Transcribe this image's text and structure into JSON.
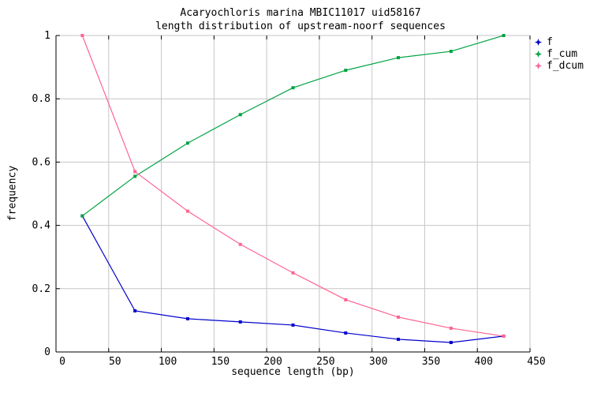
{
  "chart_data": {
    "type": "line",
    "title": "Acaryochloris marina MBIC11017 uid58167",
    "subtitle": "length distribution of upstream-noorf sequences",
    "xlabel": "sequence length (bp)",
    "ylabel": "frequency",
    "xlim": [
      0,
      450
    ],
    "ylim": [
      0,
      1
    ],
    "x_ticks": [
      0,
      50,
      100,
      150,
      200,
      250,
      300,
      350,
      400,
      450
    ],
    "y_ticks": [
      0,
      0.2,
      0.4,
      0.6,
      0.8,
      1
    ],
    "grid": true,
    "legend_position": "outside-top-right",
    "x": [
      25,
      75,
      125,
      175,
      225,
      275,
      325,
      375,
      425
    ],
    "series": [
      {
        "name": "f",
        "color": "#0000cd",
        "values": [
          0.43,
          0.13,
          0.105,
          0.095,
          0.085,
          0.06,
          0.04,
          0.03,
          0.05
        ]
      },
      {
        "name": "f_cum",
        "color": "#00a342",
        "values": [
          0.43,
          0.555,
          0.66,
          0.75,
          0.835,
          0.89,
          0.93,
          0.95,
          1.0
        ]
      },
      {
        "name": "f_dcum",
        "color": "#ff6390",
        "values": [
          1.0,
          0.57,
          0.445,
          0.34,
          0.25,
          0.165,
          0.11,
          0.075,
          0.05
        ]
      }
    ],
    "axis_color": "#000000",
    "grid_color": "#c6c6c6",
    "text_color": "#000000"
  }
}
